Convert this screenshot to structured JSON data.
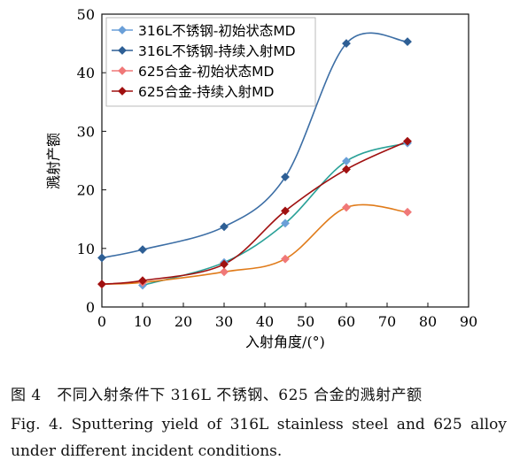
{
  "chart_data": {
    "type": "line",
    "x": [
      0,
      10,
      30,
      45,
      60,
      75
    ],
    "xlabel": "入射角度/(°)",
    "ylabel": "溅射产额",
    "xlim": [
      0,
      90
    ],
    "ylim": [
      0,
      50
    ],
    "xticks": [
      0,
      10,
      20,
      30,
      40,
      50,
      60,
      70,
      80,
      90
    ],
    "yticks": [
      0,
      10,
      20,
      30,
      40,
      50
    ],
    "grid": false,
    "legend_position": "top-left",
    "series": [
      {
        "name": "316L不锈钢-初始状态MD",
        "values": [
          null,
          3.7,
          7.6,
          14.3,
          24.9,
          28.0
        ],
        "color": "#6a9fd8",
        "curve_color": "#2aa198"
      },
      {
        "name": "316L不锈钢-持续入射MD",
        "values": [
          8.4,
          9.8,
          13.7,
          22.2,
          45.0,
          45.3
        ],
        "color": "#2e5f95",
        "curve_color": "#3c6ea5"
      },
      {
        "name": "625合金-初始状态MD",
        "values": [
          3.9,
          4.2,
          6.0,
          8.2,
          17.0,
          16.2
        ],
        "color": "#f07878",
        "curve_color": "#e07b1a"
      },
      {
        "name": "625合金-持续入射MD",
        "values": [
          3.9,
          4.5,
          7.3,
          16.4,
          23.5,
          28.3
        ],
        "color": "#a01010",
        "curve_color": "#a01010"
      }
    ]
  },
  "caption": {
    "zh": "图 4　不同入射条件下 316L 不锈钢、625 合金的溅射产额",
    "en": "Fig. 4. Sputtering yield of 316L stainless steel and 625 alloy under different incident conditions."
  }
}
